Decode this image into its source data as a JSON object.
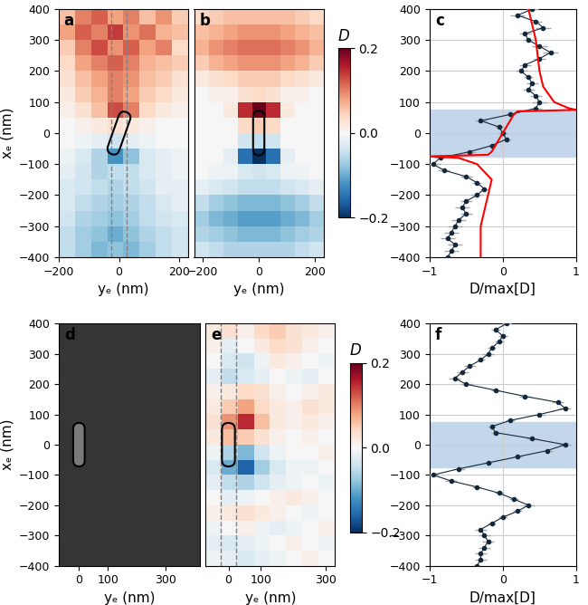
{
  "chart_data": [
    {
      "type": "heatmap",
      "label": "a",
      "xlabel": "yₑ (nm)",
      "ylabel": "xₑ (nm)",
      "xlim": [
        -200,
        230
      ],
      "ylim": [
        -400,
        400
      ],
      "xticks": [
        {
          "value": -200,
          "label": "−200"
        },
        0,
        200
      ],
      "yticks": [
        {
          "value": -400,
          "label": "−400"
        },
        {
          "value": -300,
          "label": "−300"
        },
        {
          "value": -200,
          "label": "−200"
        },
        {
          "value": -100,
          "label": "−100"
        },
        0,
        100,
        200,
        300,
        400
      ],
      "color": "RdBu_r",
      "crange": [
        -0.2,
        0.2
      ],
      "cells": [
        [
          0.06,
          0.1,
          0.12,
          0.08,
          0.1,
          0.06,
          0.09,
          0.05
        ],
        [
          0.08,
          0.12,
          0.1,
          0.14,
          0.09,
          0.11,
          0.07,
          0.06
        ],
        [
          0.05,
          0.1,
          0.13,
          0.09,
          0.12,
          0.08,
          0.1,
          0.04
        ],
        [
          0.04,
          0.08,
          0.1,
          0.12,
          0.1,
          0.07,
          0.06,
          0.05
        ],
        [
          0.03,
          0.06,
          0.08,
          0.1,
          0.09,
          0.06,
          0.05,
          0.03
        ],
        [
          0.02,
          0.05,
          0.07,
          0.1,
          0.08,
          0.05,
          0.04,
          0.02
        ],
        [
          0.01,
          0.03,
          0.06,
          0.13,
          0.1,
          0.04,
          0.02,
          0.01
        ],
        [
          0.0,
          0.01,
          0.02,
          0.03,
          0.02,
          0.01,
          0.0,
          0.0
        ],
        [
          0.0,
          -0.01,
          -0.02,
          -0.04,
          -0.02,
          -0.01,
          0.0,
          0.0
        ],
        [
          -0.01,
          -0.03,
          -0.06,
          -0.12,
          -0.08,
          -0.03,
          -0.02,
          -0.01
        ],
        [
          -0.02,
          -0.04,
          -0.06,
          -0.05,
          -0.05,
          -0.03,
          -0.02,
          -0.01
        ],
        [
          -0.03,
          -0.04,
          -0.05,
          -0.06,
          -0.05,
          -0.04,
          -0.02,
          -0.02
        ],
        [
          -0.03,
          -0.05,
          -0.06,
          -0.07,
          -0.06,
          -0.05,
          -0.03,
          -0.02
        ],
        [
          -0.04,
          -0.06,
          -0.07,
          -0.08,
          -0.07,
          -0.05,
          -0.04,
          -0.03
        ],
        [
          -0.05,
          -0.07,
          -0.08,
          -0.1,
          -0.08,
          -0.06,
          -0.05,
          -0.04
        ],
        [
          -0.05,
          -0.07,
          -0.09,
          -0.08,
          -0.09,
          -0.07,
          -0.05,
          -0.04
        ]
      ]
    },
    {
      "type": "heatmap",
      "label": "b",
      "xlabel": "yₑ (nm)",
      "xlim": [
        -230,
        230
      ],
      "ylim": [
        -400,
        400
      ],
      "xticks": [
        {
          "value": -200,
          "label": "−200"
        },
        0,
        200
      ],
      "tick_labels": "x",
      "color": "RdBu_r",
      "crange": [
        -0.2,
        0.2
      ],
      "colorbar": {
        "label": "D",
        "ticks": [
          {
            "value": -0.2,
            "label": "−0.2"
          },
          {
            "value": 0,
            "label": "0.0"
          },
          {
            "value": 0.2,
            "label": "0.2"
          }
        ]
      },
      "cells": [
        [
          0.04,
          0.05,
          0.06,
          0.06,
          0.06,
          0.06,
          0.06,
          0.05,
          0.04
        ],
        [
          0.06,
          0.07,
          0.08,
          0.09,
          0.09,
          0.09,
          0.08,
          0.07,
          0.06
        ],
        [
          0.07,
          0.09,
          0.1,
          0.11,
          0.11,
          0.11,
          0.1,
          0.09,
          0.07
        ],
        [
          0.05,
          0.07,
          0.08,
          0.09,
          0.09,
          0.09,
          0.08,
          0.07,
          0.05
        ],
        [
          0.02,
          0.03,
          0.04,
          0.05,
          0.05,
          0.05,
          0.04,
          0.03,
          0.02
        ],
        [
          0.0,
          0.01,
          0.01,
          0.03,
          0.04,
          0.03,
          0.01,
          0.01,
          0.0
        ],
        [
          0.0,
          0.0,
          0.02,
          0.15,
          0.2,
          0.15,
          0.02,
          0.0,
          0.0
        ],
        [
          0.0,
          0.0,
          0.0,
          0.04,
          0.05,
          0.04,
          0.0,
          0.0,
          0.0
        ],
        [
          0.0,
          0.0,
          0.0,
          -0.04,
          -0.05,
          -0.04,
          0.0,
          0.0,
          0.0
        ],
        [
          0.0,
          0.0,
          -0.02,
          -0.15,
          -0.2,
          -0.15,
          -0.02,
          0.0,
          0.0
        ],
        [
          0.0,
          -0.01,
          -0.01,
          -0.03,
          -0.04,
          -0.03,
          -0.01,
          -0.01,
          0.0
        ],
        [
          -0.02,
          -0.03,
          -0.04,
          -0.05,
          -0.05,
          -0.05,
          -0.04,
          -0.03,
          -0.02
        ],
        [
          -0.05,
          -0.07,
          -0.08,
          -0.09,
          -0.09,
          -0.09,
          -0.08,
          -0.07,
          -0.05
        ],
        [
          -0.07,
          -0.09,
          -0.1,
          -0.11,
          -0.11,
          -0.11,
          -0.1,
          -0.09,
          -0.07
        ],
        [
          -0.06,
          -0.07,
          -0.08,
          -0.09,
          -0.09,
          -0.09,
          -0.08,
          -0.07,
          -0.06
        ],
        [
          -0.04,
          -0.05,
          -0.06,
          -0.06,
          -0.06,
          -0.06,
          -0.06,
          -0.05,
          -0.04
        ]
      ]
    },
    {
      "type": "errorbar",
      "label": "c",
      "xlabel": "D/max[D]",
      "xlim": [
        -1,
        1
      ],
      "xticks": [
        {
          "value": -1,
          "label": "−1"
        },
        0,
        1
      ],
      "ylim": [
        -400,
        400
      ],
      "yticks": [
        {
          "value": -400,
          "label": "−400"
        },
        {
          "value": -300,
          "label": "−300"
        },
        {
          "value": -200,
          "label": "−200"
        },
        {
          "value": -100,
          "label": "−100"
        },
        0,
        100,
        200,
        300,
        400
      ],
      "grid": true,
      "color": "#14283c",
      "y": [
        400,
        380,
        360,
        340,
        320,
        300,
        280,
        260,
        240,
        220,
        200,
        180,
        160,
        140,
        120,
        100,
        80,
        60,
        40,
        20,
        0,
        -20,
        -40,
        -60,
        -80,
        -100,
        -120,
        -140,
        -160,
        -180,
        -200,
        -220,
        -240,
        -260,
        -280,
        -300,
        -320,
        -340,
        -360,
        -380,
        -400
      ],
      "values": [
        0.4,
        0.2,
        0.45,
        0.55,
        0.3,
        0.35,
        0.5,
        0.65,
        0.5,
        0.3,
        0.25,
        0.35,
        0.4,
        0.35,
        0.45,
        0.5,
        0.45,
        0.1,
        -0.3,
        -0.05,
        0.0,
        0.05,
        -0.15,
        -0.45,
        -0.85,
        -0.95,
        -0.8,
        -0.5,
        -0.35,
        -0.25,
        -0.35,
        -0.5,
        -0.55,
        -0.5,
        -0.6,
        -0.65,
        -0.7,
        -0.75,
        -0.65,
        -0.7,
        -0.75
      ],
      "errors": [
        0.08,
        0.1,
        0.08,
        0.1,
        0.08,
        0.08,
        0.1,
        0.1,
        0.08,
        0.08,
        0.08,
        0.06,
        0.08,
        0.08,
        0.08,
        0.1,
        0.08,
        0.06,
        0.08,
        0.06,
        0.06,
        0.06,
        0.06,
        0.08,
        0.08,
        0.1,
        0.08,
        0.08,
        0.06,
        0.06,
        0.08,
        0.08,
        0.1,
        0.08,
        0.1,
        0.1,
        0.1,
        0.1,
        0.1,
        0.1,
        0.1
      ],
      "simulation": {
        "color": "#ff0000",
        "y": [
          400,
          300,
          200,
          150,
          100,
          80,
          75,
          70,
          60,
          40,
          20,
          0,
          -20,
          -40,
          -60,
          -70,
          -75,
          -80,
          -100,
          -150,
          -200,
          -300,
          -400
        ],
        "values": [
          0.35,
          0.45,
          0.5,
          0.55,
          0.7,
          0.9,
          1.0,
          0.2,
          0.15,
          0.1,
          0.05,
          0.0,
          -0.05,
          -0.1,
          -0.15,
          -0.2,
          -1.0,
          -0.6,
          -0.35,
          -0.15,
          -0.2,
          -0.3,
          -0.3
        ]
      }
    },
    {
      "type": "image",
      "label": "d",
      "xlabel": "yₑ (nm)",
      "ylabel": "xₑ (nm)",
      "xlim": [
        -70,
        420
      ],
      "ylim": [
        -400,
        400
      ],
      "xticks": [
        0,
        100,
        300
      ],
      "yticks": [
        {
          "value": -400,
          "label": "−400"
        },
        {
          "value": -300,
          "label": "−300"
        },
        {
          "value": -200,
          "label": "−200"
        },
        {
          "value": -100,
          "label": "−100"
        },
        0,
        100,
        200,
        300,
        400
      ]
    },
    {
      "type": "heatmap",
      "label": "e",
      "xlabel": "yₑ (nm)",
      "xlim": [
        -70,
        330
      ],
      "ylim": [
        -400,
        400
      ],
      "xticks": [
        0,
        100,
        300
      ],
      "tick_labels": "x",
      "color": "RdBu_r",
      "crange": [
        -0.2,
        0.2
      ],
      "colorbar": {
        "label": "D",
        "ticks": [
          {
            "value": -0.2,
            "label": "−0.2"
          },
          {
            "value": 0,
            "label": "0.0"
          },
          {
            "value": 0.2,
            "label": "0.2"
          }
        ]
      },
      "cells": [
        [
          0.02,
          0.03,
          0.01,
          0.04,
          0.05,
          0.03,
          0.02,
          0.01
        ],
        [
          0.01,
          -0.02,
          0.0,
          0.02,
          0.04,
          0.03,
          0.01,
          0.0
        ],
        [
          0.0,
          -0.03,
          -0.04,
          -0.01,
          0.02,
          0.01,
          0.0,
          -0.01
        ],
        [
          -0.02,
          -0.05,
          -0.03,
          -0.02,
          0.0,
          -0.01,
          -0.02,
          0.0
        ],
        [
          0.01,
          0.02,
          0.04,
          0.03,
          0.01,
          0.0,
          0.01,
          0.02
        ],
        [
          0.02,
          0.05,
          0.08,
          0.04,
          0.02,
          0.01,
          0.03,
          0.02
        ],
        [
          0.03,
          0.09,
          0.15,
          0.06,
          0.02,
          0.01,
          0.02,
          0.01
        ],
        [
          0.02,
          0.06,
          0.05,
          0.03,
          0.01,
          0.0,
          0.01,
          0.0
        ],
        [
          -0.01,
          -0.06,
          -0.09,
          -0.04,
          -0.01,
          0.0,
          0.0,
          0.01
        ],
        [
          -0.03,
          -0.1,
          -0.16,
          -0.07,
          -0.03,
          -0.01,
          -0.01,
          0.0
        ],
        [
          -0.02,
          -0.05,
          -0.06,
          -0.04,
          -0.02,
          -0.01,
          0.0,
          -0.01
        ],
        [
          0.0,
          -0.02,
          -0.01,
          0.0,
          0.01,
          0.02,
          0.01,
          0.0
        ],
        [
          0.01,
          0.02,
          0.03,
          0.02,
          0.01,
          0.0,
          -0.01,
          0.0
        ],
        [
          -0.01,
          0.0,
          0.01,
          -0.01,
          -0.02,
          -0.01,
          0.0,
          0.01
        ],
        [
          -0.02,
          -0.03,
          -0.02,
          -0.01,
          0.0,
          0.01,
          0.0,
          -0.01
        ],
        [
          -0.01,
          -0.02,
          -0.03,
          -0.02,
          -0.01,
          0.0,
          0.01,
          0.0
        ]
      ]
    },
    {
      "type": "errorbar",
      "label": "f",
      "xlabel": "D/max[D]",
      "xlim": [
        -1,
        1
      ],
      "xticks": [
        {
          "value": -1,
          "label": "−1"
        },
        0,
        1
      ],
      "ylim": [
        -400,
        400
      ],
      "yticks": [
        {
          "value": -400,
          "label": "−400"
        },
        {
          "value": -300,
          "label": "−300"
        },
        {
          "value": -200,
          "label": "−200"
        },
        {
          "value": -100,
          "label": "−100"
        },
        0,
        100,
        200,
        300,
        400
      ],
      "grid": true,
      "color": "#14283c",
      "y": [
        400,
        380,
        360,
        340,
        320,
        300,
        280,
        260,
        240,
        220,
        200,
        180,
        160,
        140,
        120,
        100,
        80,
        60,
        40,
        20,
        0,
        -20,
        -40,
        -60,
        -80,
        -100,
        -120,
        -140,
        -160,
        -180,
        -200,
        -220,
        -240,
        -260,
        -280,
        -300,
        -320,
        -340,
        -360,
        -380,
        -400
      ],
      "values": [
        0.05,
        -0.1,
        0.0,
        -0.05,
        -0.15,
        -0.2,
        -0.3,
        -0.45,
        -0.55,
        -0.65,
        -0.5,
        -0.1,
        0.3,
        0.75,
        0.85,
        0.5,
        0.1,
        -0.15,
        -0.1,
        0.4,
        0.85,
        0.6,
        0.2,
        -0.2,
        -0.6,
        -0.95,
        -0.7,
        -0.35,
        -0.05,
        0.15,
        0.35,
        0.2,
        0.0,
        -0.15,
        -0.3,
        -0.25,
        -0.2,
        -0.25,
        -0.3,
        -0.3,
        -0.35
      ],
      "errors": [
        0.06,
        0.06,
        0.06,
        0.06,
        0.06,
        0.08,
        0.06,
        0.08,
        0.08,
        0.08,
        0.08,
        0.06,
        0.08,
        0.08,
        0.08,
        0.08,
        0.06,
        0.06,
        0.06,
        0.08,
        0.08,
        0.08,
        0.06,
        0.06,
        0.08,
        0.08,
        0.08,
        0.06,
        0.06,
        0.06,
        0.08,
        0.06,
        0.06,
        0.06,
        0.08,
        0.08,
        0.08,
        0.08,
        0.08,
        0.08,
        0.08
      ]
    }
  ]
}
